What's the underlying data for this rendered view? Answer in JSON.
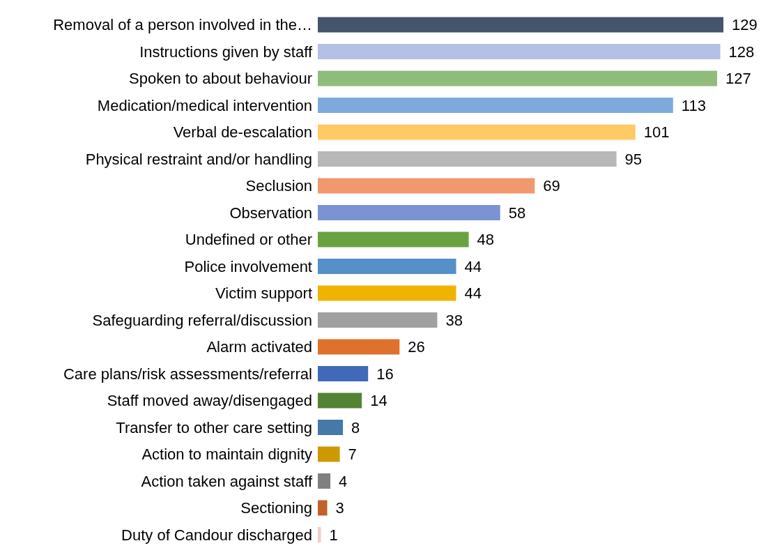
{
  "chart_data": {
    "type": "bar",
    "orientation": "horizontal",
    "data_labels": true,
    "categories": [
      "Removal of a person involved in the…",
      "Instructions given by staff",
      "Spoken to about behaviour",
      "Medication/medical intervention",
      "Verbal de-escalation",
      "Physical restraint and/or handling",
      "Seclusion",
      "Observation",
      "Undefined or other",
      "Police involvement",
      "Victim support",
      "Safeguarding referral/discussion",
      "Alarm activated",
      "Care plans/risk assessments/referral",
      "Staff moved away/disengaged",
      "Transfer to other care setting",
      "Action to maintain dignity",
      "Action taken against staff",
      "Sectioning",
      "Duty of Candour discharged"
    ],
    "values": [
      129,
      128,
      127,
      113,
      101,
      95,
      69,
      58,
      48,
      44,
      44,
      38,
      26,
      16,
      14,
      8,
      7,
      4,
      3,
      1
    ],
    "colors": [
      "#44546a",
      "#b4c0e4",
      "#8fbc7a",
      "#7eaadb",
      "#ffc966",
      "#b7b7b7",
      "#f0996f",
      "#7b93d0",
      "#69a341",
      "#5590c8",
      "#f0b400",
      "#a0a0a0",
      "#de722c",
      "#4169b9",
      "#548235",
      "#4678a8",
      "#cc9900",
      "#808080",
      "#c0622a",
      "#f8cbcb"
    ]
  }
}
